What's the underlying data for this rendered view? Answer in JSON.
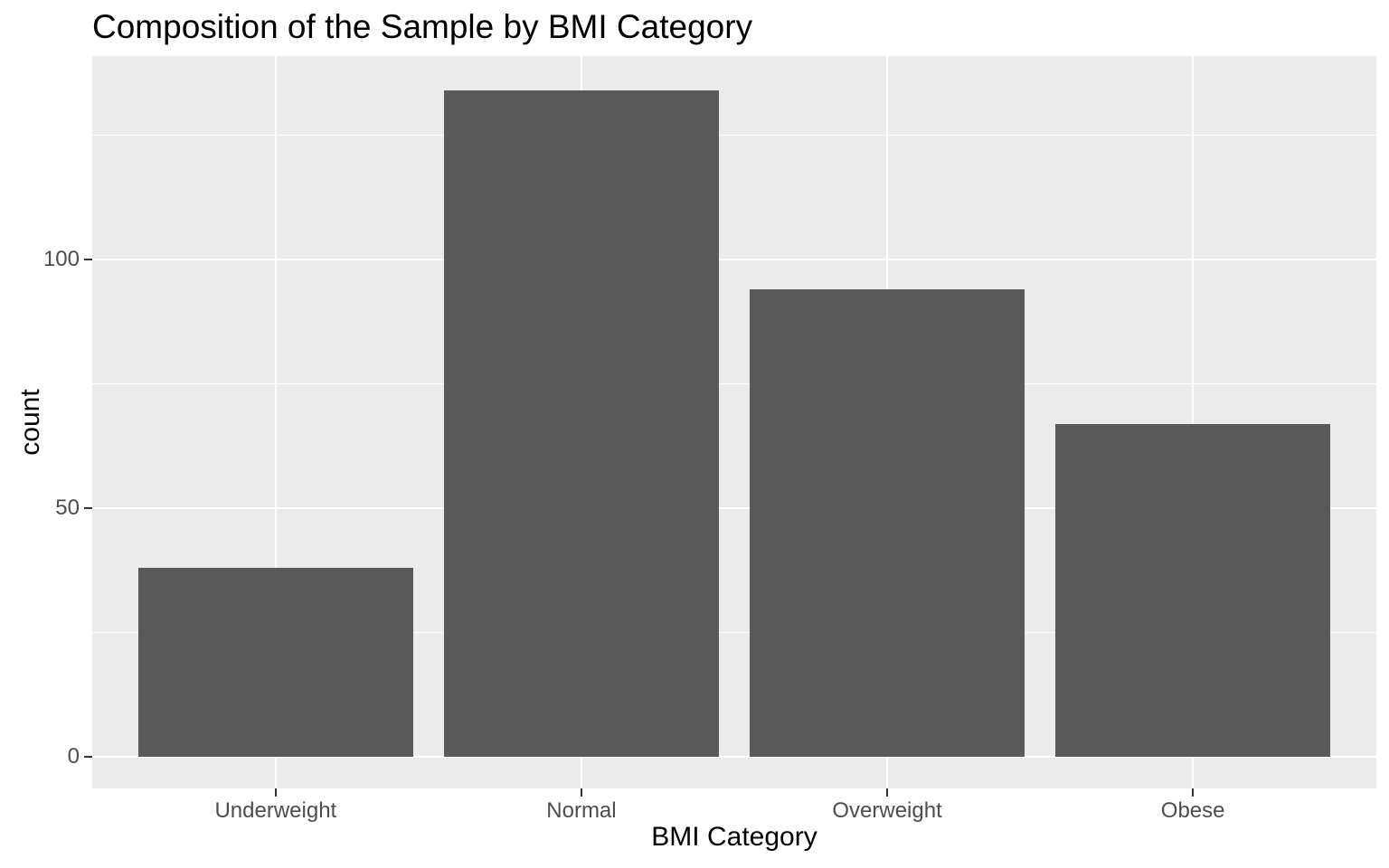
{
  "chart_data": {
    "type": "bar",
    "title": "Composition of the Sample by BMI Category",
    "xlabel": "BMI Category",
    "ylabel": "count",
    "categories": [
      "Underweight",
      "Normal",
      "Overweight",
      "Obese"
    ],
    "values": [
      38,
      134,
      94,
      67
    ],
    "ylim": [
      -6.3,
      140.9
    ],
    "yticks": [
      0,
      50,
      100
    ],
    "ytick_labels": [
      "0",
      "50",
      "100"
    ],
    "yticks_minor": [
      25,
      75,
      125
    ],
    "grid": "major-and-minor-horizontal, major-vertical-at-category-centers",
    "legend_position": "none",
    "colors": {
      "bar_fill": "#595959",
      "panel_background": "#EBEBEB",
      "gridline": "#FFFFFF",
      "tick_mark": "#333333",
      "tick_label": "#4D4D4D",
      "axis_title": "#000000",
      "title": "#000000",
      "figure_background": "#FFFFFF"
    }
  }
}
